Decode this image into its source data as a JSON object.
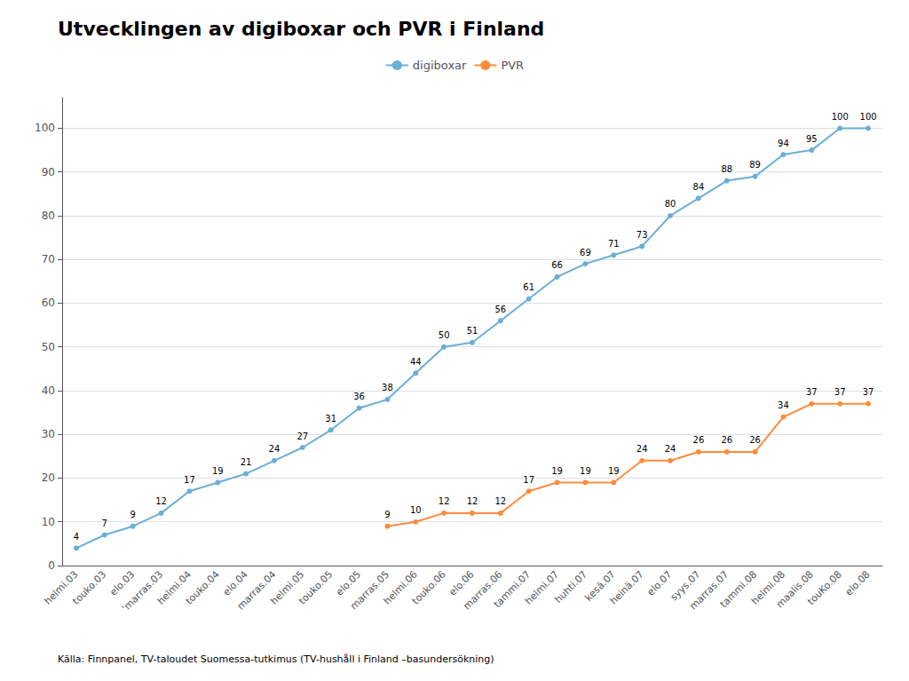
{
  "chart_data": {
    "type": "line",
    "title": "Utvecklingen av digiboxar och PVR i Finland",
    "source": "Källa: Finnpanel, TV-taloudet Suomessa-tutkimus (TV-hushåll i Finland –basundersökning)",
    "categories": [
      "helmi.03",
      "touko.03",
      "elo.03",
      "'marras.03",
      "helmi.04",
      "touko.04",
      "elo.04",
      "marras.04",
      "helmi.05",
      "touko.05",
      "elo.05",
      "marras.05",
      "helmi.06",
      "touko.06",
      "elo.06",
      "marras.06",
      "tammi.07",
      "helmi.07",
      "huhti.07",
      "kesä.07",
      "heinä.07",
      "elo.07",
      "syys.07",
      "marras.07",
      "tammi.08",
      "helmi.08",
      "maalis.08",
      "touKo.08",
      "elo.08"
    ],
    "series": [
      {
        "name": "digiboxar",
        "color": "#6baed6",
        "values": [
          4,
          7,
          9,
          12,
          17,
          19,
          21,
          24,
          27,
          31,
          36,
          38,
          44,
          50,
          51,
          56,
          61,
          66,
          69,
          71,
          73,
          80,
          84,
          88,
          89,
          94,
          95,
          100,
          100
        ]
      },
      {
        "name": "PVR",
        "color": "#fd8d3c",
        "values": [
          null,
          null,
          null,
          null,
          null,
          null,
          null,
          null,
          null,
          null,
          null,
          9,
          10,
          12,
          12,
          12,
          17,
          19,
          19,
          19,
          24,
          24,
          26,
          26,
          26,
          34,
          37,
          37,
          37
        ]
      }
    ],
    "ylim": [
      0,
      107
    ],
    "yticks": [
      0,
      10,
      20,
      30,
      40,
      50,
      60,
      70,
      80,
      90,
      100
    ],
    "grid": true,
    "legend": "top",
    "data_labels": true,
    "marker": "circle"
  }
}
